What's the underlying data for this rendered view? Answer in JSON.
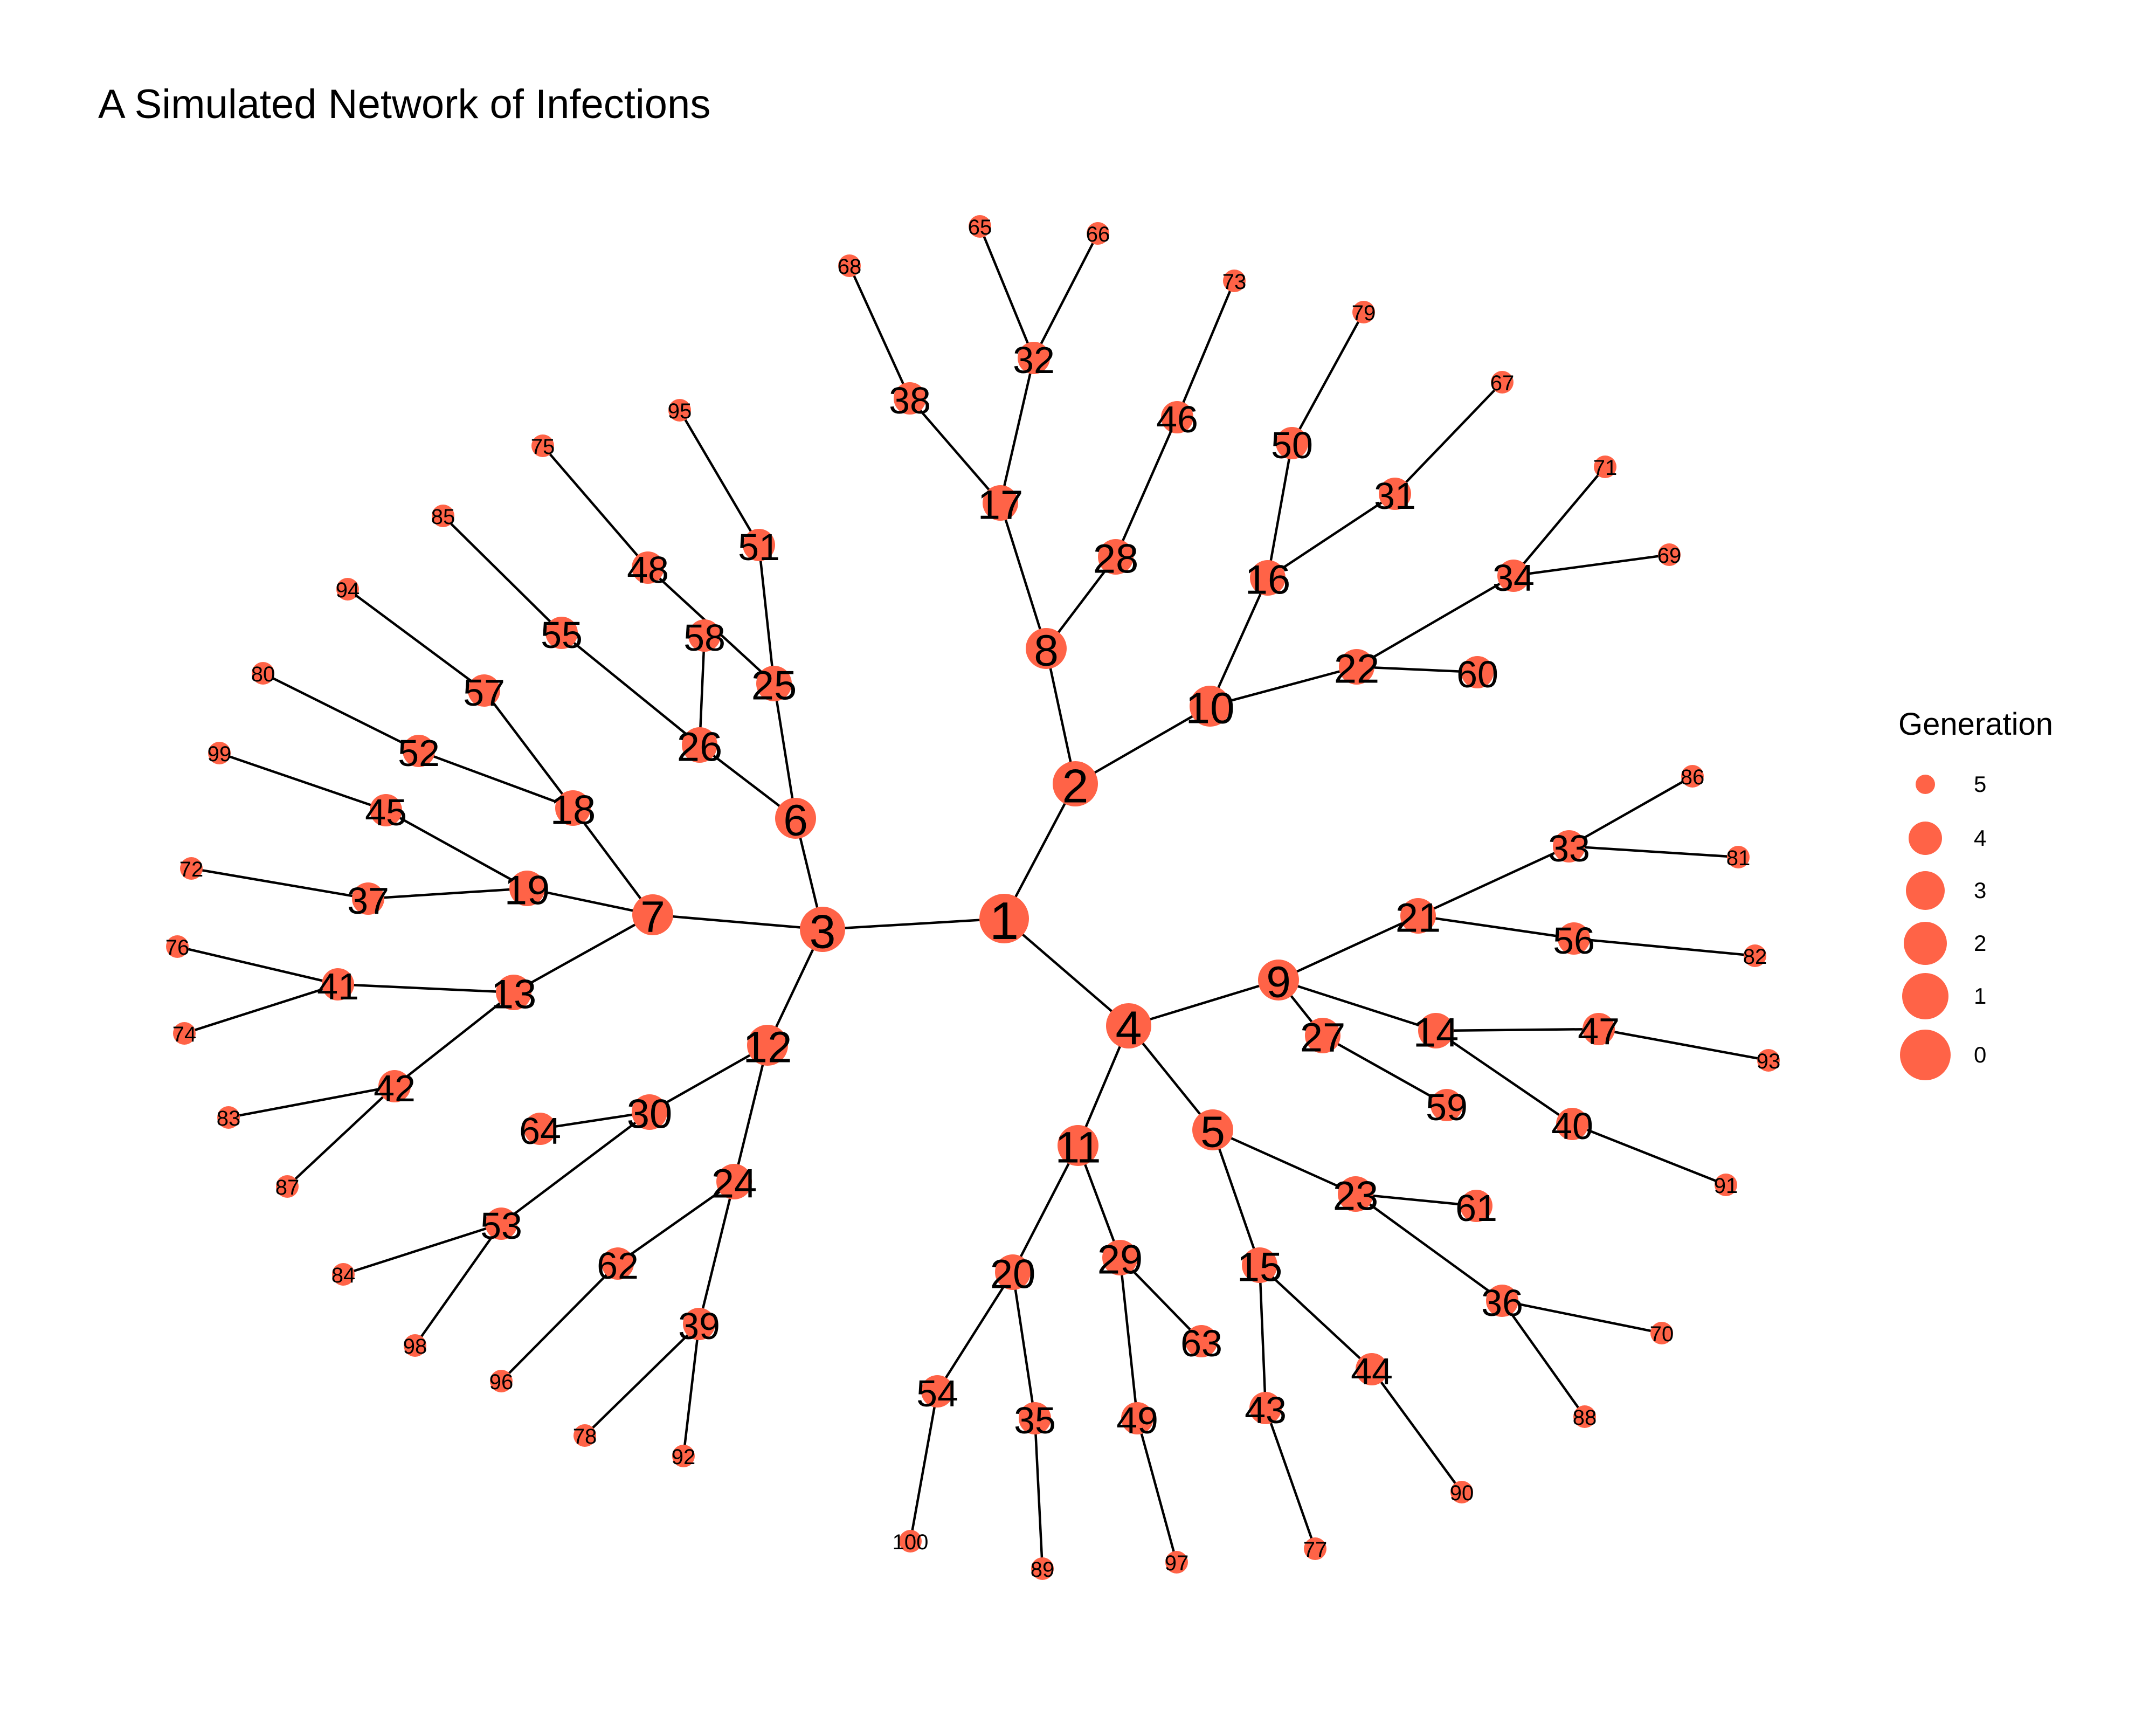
{
  "title": "A Simulated Network of Infections",
  "node_color": "#FF6347",
  "edge_color": "#000000",
  "legend": {
    "title": "Generation",
    "items": [
      {
        "label": "5",
        "generation": 5
      },
      {
        "label": "4",
        "generation": 4
      },
      {
        "label": "3",
        "generation": 3
      },
      {
        "label": "2",
        "generation": 2
      },
      {
        "label": "1",
        "generation": 1
      },
      {
        "label": "0",
        "generation": 0
      }
    ]
  },
  "nodes": [
    {
      "id": "1",
      "generation": 0
    },
    {
      "id": "2",
      "generation": 1
    },
    {
      "id": "3",
      "generation": 1
    },
    {
      "id": "4",
      "generation": 1
    },
    {
      "id": "5",
      "generation": 2
    },
    {
      "id": "6",
      "generation": 2
    },
    {
      "id": "7",
      "generation": 2
    },
    {
      "id": "8",
      "generation": 2
    },
    {
      "id": "9",
      "generation": 2
    },
    {
      "id": "10",
      "generation": 2
    },
    {
      "id": "11",
      "generation": 2
    },
    {
      "id": "12",
      "generation": 2
    },
    {
      "id": "13",
      "generation": 3
    },
    {
      "id": "14",
      "generation": 3
    },
    {
      "id": "15",
      "generation": 3
    },
    {
      "id": "16",
      "generation": 3
    },
    {
      "id": "17",
      "generation": 3
    },
    {
      "id": "18",
      "generation": 3
    },
    {
      "id": "19",
      "generation": 3
    },
    {
      "id": "20",
      "generation": 3
    },
    {
      "id": "21",
      "generation": 3
    },
    {
      "id": "22",
      "generation": 3
    },
    {
      "id": "23",
      "generation": 3
    },
    {
      "id": "24",
      "generation": 3
    },
    {
      "id": "25",
      "generation": 3
    },
    {
      "id": "26",
      "generation": 3
    },
    {
      "id": "27",
      "generation": 3
    },
    {
      "id": "28",
      "generation": 3
    },
    {
      "id": "29",
      "generation": 3
    },
    {
      "id": "30",
      "generation": 3
    },
    {
      "id": "31",
      "generation": 4
    },
    {
      "id": "32",
      "generation": 4
    },
    {
      "id": "33",
      "generation": 4
    },
    {
      "id": "34",
      "generation": 4
    },
    {
      "id": "35",
      "generation": 4
    },
    {
      "id": "36",
      "generation": 4
    },
    {
      "id": "37",
      "generation": 4
    },
    {
      "id": "38",
      "generation": 4
    },
    {
      "id": "39",
      "generation": 4
    },
    {
      "id": "40",
      "generation": 4
    },
    {
      "id": "41",
      "generation": 4
    },
    {
      "id": "42",
      "generation": 4
    },
    {
      "id": "43",
      "generation": 4
    },
    {
      "id": "44",
      "generation": 4
    },
    {
      "id": "45",
      "generation": 4
    },
    {
      "id": "46",
      "generation": 4
    },
    {
      "id": "47",
      "generation": 4
    },
    {
      "id": "48",
      "generation": 4
    },
    {
      "id": "49",
      "generation": 4
    },
    {
      "id": "50",
      "generation": 4
    },
    {
      "id": "51",
      "generation": 4
    },
    {
      "id": "52",
      "generation": 4
    },
    {
      "id": "53",
      "generation": 4
    },
    {
      "id": "54",
      "generation": 4
    },
    {
      "id": "55",
      "generation": 4
    },
    {
      "id": "56",
      "generation": 4
    },
    {
      "id": "57",
      "generation": 4
    },
    {
      "id": "58",
      "generation": 4
    },
    {
      "id": "59",
      "generation": 4
    },
    {
      "id": "60",
      "generation": 4
    },
    {
      "id": "61",
      "generation": 4
    },
    {
      "id": "62",
      "generation": 4
    },
    {
      "id": "63",
      "generation": 4
    },
    {
      "id": "64",
      "generation": 4
    },
    {
      "id": "65",
      "generation": 5
    },
    {
      "id": "66",
      "generation": 5
    },
    {
      "id": "67",
      "generation": 5
    },
    {
      "id": "68",
      "generation": 5
    },
    {
      "id": "69",
      "generation": 5
    },
    {
      "id": "70",
      "generation": 5
    },
    {
      "id": "71",
      "generation": 5
    },
    {
      "id": "72",
      "generation": 5
    },
    {
      "id": "73",
      "generation": 5
    },
    {
      "id": "74",
      "generation": 5
    },
    {
      "id": "75",
      "generation": 5
    },
    {
      "id": "76",
      "generation": 5
    },
    {
      "id": "77",
      "generation": 5
    },
    {
      "id": "78",
      "generation": 5
    },
    {
      "id": "79",
      "generation": 5
    },
    {
      "id": "80",
      "generation": 5
    },
    {
      "id": "81",
      "generation": 5
    },
    {
      "id": "82",
      "generation": 5
    },
    {
      "id": "83",
      "generation": 5
    },
    {
      "id": "84",
      "generation": 5
    },
    {
      "id": "85",
      "generation": 5
    },
    {
      "id": "86",
      "generation": 5
    },
    {
      "id": "87",
      "generation": 5
    },
    {
      "id": "88",
      "generation": 5
    },
    {
      "id": "89",
      "generation": 5
    },
    {
      "id": "90",
      "generation": 5
    },
    {
      "id": "91",
      "generation": 5
    },
    {
      "id": "92",
      "generation": 5
    },
    {
      "id": "93",
      "generation": 5
    },
    {
      "id": "94",
      "generation": 5
    },
    {
      "id": "95",
      "generation": 5
    },
    {
      "id": "96",
      "generation": 5
    },
    {
      "id": "97",
      "generation": 5
    },
    {
      "id": "98",
      "generation": 5
    },
    {
      "id": "99",
      "generation": 5
    },
    {
      "id": "100",
      "generation": 5
    }
  ],
  "edges": [
    [
      "1",
      "2"
    ],
    [
      "1",
      "3"
    ],
    [
      "1",
      "4"
    ],
    [
      "2",
      "8"
    ],
    [
      "2",
      "10"
    ],
    [
      "3",
      "6"
    ],
    [
      "3",
      "7"
    ],
    [
      "3",
      "12"
    ],
    [
      "4",
      "5"
    ],
    [
      "4",
      "9"
    ],
    [
      "4",
      "11"
    ],
    [
      "5",
      "15"
    ],
    [
      "5",
      "23"
    ],
    [
      "6",
      "25"
    ],
    [
      "6",
      "26"
    ],
    [
      "7",
      "13"
    ],
    [
      "7",
      "18"
    ],
    [
      "7",
      "19"
    ],
    [
      "8",
      "17"
    ],
    [
      "8",
      "28"
    ],
    [
      "9",
      "14"
    ],
    [
      "9",
      "21"
    ],
    [
      "9",
      "27"
    ],
    [
      "10",
      "16"
    ],
    [
      "10",
      "22"
    ],
    [
      "11",
      "20"
    ],
    [
      "11",
      "29"
    ],
    [
      "12",
      "24"
    ],
    [
      "12",
      "30"
    ],
    [
      "13",
      "41"
    ],
    [
      "13",
      "42"
    ],
    [
      "14",
      "40"
    ],
    [
      "14",
      "47"
    ],
    [
      "15",
      "43"
    ],
    [
      "15",
      "44"
    ],
    [
      "16",
      "31"
    ],
    [
      "16",
      "50"
    ],
    [
      "17",
      "32"
    ],
    [
      "17",
      "38"
    ],
    [
      "18",
      "52"
    ],
    [
      "18",
      "57"
    ],
    [
      "19",
      "37"
    ],
    [
      "19",
      "45"
    ],
    [
      "20",
      "35"
    ],
    [
      "20",
      "54"
    ],
    [
      "21",
      "33"
    ],
    [
      "21",
      "56"
    ],
    [
      "22",
      "34"
    ],
    [
      "22",
      "60"
    ],
    [
      "23",
      "36"
    ],
    [
      "23",
      "61"
    ],
    [
      "24",
      "39"
    ],
    [
      "24",
      "62"
    ],
    [
      "25",
      "48"
    ],
    [
      "25",
      "51"
    ],
    [
      "26",
      "55"
    ],
    [
      "26",
      "58"
    ],
    [
      "27",
      "59"
    ],
    [
      "28",
      "46"
    ],
    [
      "29",
      "49"
    ],
    [
      "29",
      "63"
    ],
    [
      "30",
      "53"
    ],
    [
      "30",
      "64"
    ],
    [
      "31",
      "67"
    ],
    [
      "32",
      "65"
    ],
    [
      "32",
      "66"
    ],
    [
      "33",
      "81"
    ],
    [
      "33",
      "86"
    ],
    [
      "34",
      "69"
    ],
    [
      "34",
      "71"
    ],
    [
      "36",
      "70"
    ],
    [
      "36",
      "88"
    ],
    [
      "37",
      "72"
    ],
    [
      "38",
      "68"
    ],
    [
      "39",
      "78"
    ],
    [
      "39",
      "92"
    ],
    [
      "40",
      "91"
    ],
    [
      "41",
      "74"
    ],
    [
      "41",
      "76"
    ],
    [
      "42",
      "83"
    ],
    [
      "42",
      "87"
    ],
    [
      "43",
      "77"
    ],
    [
      "44",
      "90"
    ],
    [
      "45",
      "99"
    ],
    [
      "46",
      "73"
    ],
    [
      "47",
      "93"
    ],
    [
      "48",
      "75"
    ],
    [
      "49",
      "97"
    ],
    [
      "50",
      "79"
    ],
    [
      "51",
      "95"
    ],
    [
      "52",
      "80"
    ],
    [
      "53",
      "84"
    ],
    [
      "53",
      "98"
    ],
    [
      "54",
      "100"
    ],
    [
      "55",
      "85"
    ],
    [
      "56",
      "82"
    ],
    [
      "57",
      "94"
    ],
    [
      "35",
      "89"
    ],
    [
      "62",
      "96"
    ]
  ]
}
